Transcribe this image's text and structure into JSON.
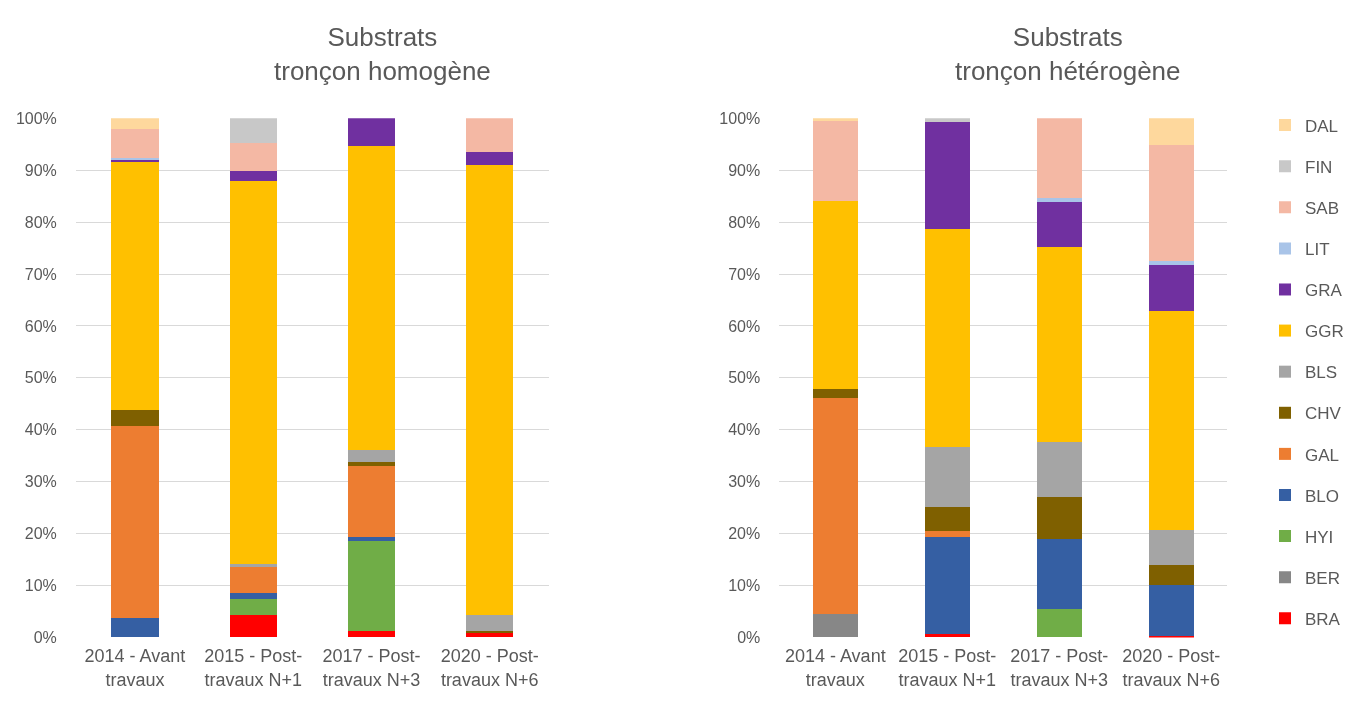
{
  "chart_data": [
    {
      "type": "bar",
      "title": "Substrats\ntronçon homogène",
      "categories": [
        "2014 - Avant travaux",
        "2015 - Post-travaux N+1",
        "2017 - Post-travaux N+3",
        "2020 - Post-travaux N+6"
      ],
      "stacked": true,
      "ylim": [
        0,
        100
      ],
      "yticks": [
        {
          "value": 0,
          "label": "0%"
        },
        {
          "value": 10,
          "label": "10%"
        },
        {
          "value": 20,
          "label": "20%"
        },
        {
          "value": 30,
          "label": "30%"
        },
        {
          "value": 40,
          "label": "40%"
        },
        {
          "value": 50,
          "label": "50%"
        },
        {
          "value": 60,
          "label": "60%"
        },
        {
          "value": 70,
          "label": "70%"
        },
        {
          "value": 80,
          "label": "80%"
        },
        {
          "value": 90,
          "label": "90%"
        },
        {
          "value": 100,
          "label": "100%"
        }
      ],
      "grid": "y",
      "legend": "right",
      "series": [
        {
          "name": "BRA",
          "color": "#ff0000",
          "values": [
            null,
            4.4,
            1.2,
            0.9
          ]
        },
        {
          "name": "HYI",
          "color": "#70ad47",
          "values": [
            null,
            3.0,
            17.4,
            null
          ]
        },
        {
          "name": "BLO",
          "color": "#355fa3",
          "values": [
            3.8,
            1.1,
            0.7,
            null
          ]
        },
        {
          "name": "GAL",
          "color": "#ed7d31",
          "values": [
            37.0,
            5.1,
            13.7,
            null
          ]
        },
        {
          "name": "CHV",
          "color": "#7f6000",
          "values": [
            3.1,
            null,
            0.8,
            0.3
          ]
        },
        {
          "name": "BLS",
          "color": "#a5a5a5",
          "values": [
            null,
            0.6,
            2.4,
            3.2
          ]
        },
        {
          "name": "GGR",
          "color": "#ffc000",
          "values": [
            47.7,
            73.8,
            58.4,
            86.6
          ]
        },
        {
          "name": "GRA",
          "color": "#7030a0",
          "values": [
            0.5,
            1.8,
            5.4,
            2.6
          ]
        },
        {
          "name": "LIT",
          "color": "#a9c4e8",
          "values": [
            0.2,
            null,
            null,
            null
          ]
        },
        {
          "name": "SAB",
          "color": "#f4b8a4",
          "values": [
            5.7,
            5.5,
            null,
            6.4
          ]
        },
        {
          "name": "FIN",
          "color": "#c8c8c8",
          "values": [
            null,
            4.7,
            null,
            null
          ]
        },
        {
          "name": "DAL",
          "color": "#fed89d",
          "values": [
            2.0,
            null,
            null,
            null
          ]
        }
      ]
    },
    {
      "type": "bar",
      "title": "Substrats\ntronçon hétérogène",
      "categories": [
        "2014 - Avant travaux",
        "2015 - Post-travaux N+1",
        "2017 - Post-travaux N+3",
        "2020 - Post-travaux N+6"
      ],
      "stacked": true,
      "ylim": [
        0,
        100
      ],
      "yticks": [
        {
          "value": 0,
          "label": "0%"
        },
        {
          "value": 10,
          "label": "10%"
        },
        {
          "value": 20,
          "label": "20%"
        },
        {
          "value": 30,
          "label": "30%"
        },
        {
          "value": 40,
          "label": "40%"
        },
        {
          "value": 50,
          "label": "50%"
        },
        {
          "value": 60,
          "label": "60%"
        },
        {
          "value": 70,
          "label": "70%"
        },
        {
          "value": 80,
          "label": "80%"
        },
        {
          "value": 90,
          "label": "90%"
        },
        {
          "value": 100,
          "label": "100%"
        }
      ],
      "grid": "y",
      "legend": "right",
      "series": [
        {
          "name": "BRA",
          "color": "#ff0000",
          "values": [
            null,
            0.7,
            null,
            0.3
          ]
        },
        {
          "name": "BER",
          "color": "#878787",
          "values": [
            4.6,
            null,
            null,
            null
          ]
        },
        {
          "name": "HYI",
          "color": "#70ad47",
          "values": [
            null,
            null,
            5.5,
            null
          ]
        },
        {
          "name": "BLO",
          "color": "#355fa3",
          "values": [
            null,
            18.7,
            13.4,
            9.9
          ]
        },
        {
          "name": "GAL",
          "color": "#ed7d31",
          "values": [
            41.5,
            1.1,
            null,
            null
          ]
        },
        {
          "name": "CHV",
          "color": "#7f6000",
          "values": [
            1.8,
            4.6,
            8.2,
            3.8
          ]
        },
        {
          "name": "BLS",
          "color": "#a5a5a5",
          "values": [
            null,
            11.5,
            10.5,
            6.7
          ]
        },
        {
          "name": "GGR",
          "color": "#ffc000",
          "values": [
            36.2,
            42.0,
            37.6,
            42.2
          ]
        },
        {
          "name": "GRA",
          "color": "#7030a0",
          "values": [
            null,
            20.7,
            8.7,
            8.9
          ]
        },
        {
          "name": "LIT",
          "color": "#a9c4e8",
          "values": [
            null,
            null,
            0.7,
            0.7
          ]
        },
        {
          "name": "SAB",
          "color": "#f4b8a4",
          "values": [
            15.4,
            null,
            15.4,
            22.3
          ]
        },
        {
          "name": "FIN",
          "color": "#c8c8c8",
          "values": [
            null,
            0.7,
            null,
            null
          ]
        },
        {
          "name": "DAL",
          "color": "#fed89d",
          "values": [
            0.5,
            null,
            null,
            5.2
          ]
        }
      ]
    }
  ]
}
